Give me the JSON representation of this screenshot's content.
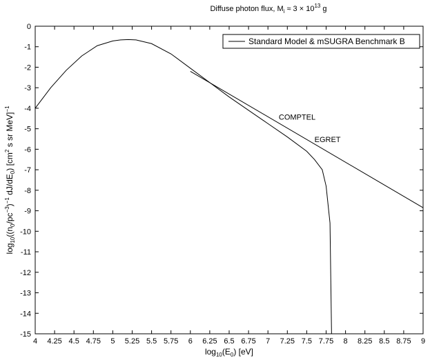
{
  "chart_data": {
    "type": "line",
    "title": {
      "prefix": "Diffuse photon flux, M",
      "sub": "i",
      "mid": " ≈ 3 × 10",
      "sup": "13",
      "suffix": " g"
    },
    "xlabel": {
      "prefix": "log",
      "sub1": "10",
      "mid": "(E",
      "sub2": "0",
      "suffix": ") [eV]"
    },
    "ylabel": {
      "p1": "log",
      "s1": "10",
      "p2": "((n",
      "s2": "0",
      "p3": "/pc",
      "u1": "−3",
      "p4": ")",
      "u2": "−1",
      "p5": " dJ/dE",
      "s3": "0",
      "p6": ") [cm",
      "u3": "2",
      "p7": " s sr MeV]",
      "u4": "−1"
    },
    "xlim": [
      4,
      9
    ],
    "ylim": [
      -15,
      0
    ],
    "xticks": [
      "4",
      "4.25",
      "4.5",
      "4.75",
      "5",
      "5.25",
      "5.5",
      "5.75",
      "6",
      "6.25",
      "6.5",
      "6.75",
      "7",
      "7.25",
      "7.5",
      "7.75",
      "8",
      "8.25",
      "8.5",
      "8.75",
      "9"
    ],
    "yticks": [
      "0",
      "-1",
      "-2",
      "-3",
      "-4",
      "-5",
      "-6",
      "-7",
      "-8",
      "-9",
      "-10",
      "-11",
      "-12",
      "-13",
      "-14",
      "-15"
    ],
    "grid": false,
    "legend": {
      "position": "top-right",
      "entries": [
        "Standard Model & mSUGRA Benchmark B"
      ]
    },
    "series": [
      {
        "name": "Standard Model & mSUGRA Benchmark B",
        "x": [
          4.0,
          4.2,
          4.4,
          4.6,
          4.8,
          5.0,
          5.1,
          5.2,
          5.3,
          5.5,
          5.75,
          6.0,
          6.25,
          6.5,
          6.75,
          7.0,
          7.25,
          7.5,
          7.6,
          7.7,
          7.75,
          7.8,
          7.82
        ],
        "y": [
          -4.0,
          -3.0,
          -2.15,
          -1.45,
          -0.95,
          -0.72,
          -0.67,
          -0.65,
          -0.67,
          -0.85,
          -1.35,
          -2.05,
          -2.75,
          -3.45,
          -4.1,
          -4.75,
          -5.4,
          -6.1,
          -6.5,
          -7.0,
          -7.8,
          -9.6,
          -15.0
        ]
      },
      {
        "name": "",
        "x": [
          6.0,
          9.0
        ],
        "y": [
          -2.2,
          -8.85
        ]
      }
    ],
    "annotations": [
      {
        "text": "COMPTEL",
        "x": 7.14,
        "y": -4.55
      },
      {
        "text": "EGRET",
        "x": 7.6,
        "y": -5.65
      }
    ]
  }
}
